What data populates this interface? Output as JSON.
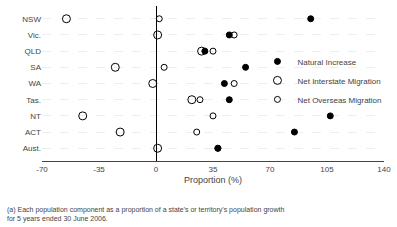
{
  "chart_data": {
    "type": "scatter",
    "categories": [
      "NSW",
      "Vic.",
      "QLD",
      "SA",
      "WA",
      "Tas.",
      "NT",
      "ACT",
      "Aust."
    ],
    "series": [
      {
        "name": "Natural Increase",
        "color": "#000000",
        "marker": "circle",
        "values": [
          95,
          45,
          30,
          55,
          42,
          45,
          107,
          85,
          38
        ]
      },
      {
        "name": "Net Interstate Migration",
        "color": "#000000",
        "marker": "circle-open",
        "values": [
          -55,
          1,
          28,
          -25,
          -2,
          22,
          -45,
          -22,
          1
        ]
      },
      {
        "name": "Net Overseas Migration",
        "color": "#000000",
        "marker": "circle-open",
        "values": [
          2,
          48,
          35,
          5,
          48,
          27,
          35,
          25,
          38
        ]
      }
    ],
    "xlim": [
      -70,
      140
    ],
    "xticks": [
      -70,
      -35,
      0,
      35,
      70,
      105,
      140
    ],
    "xlabel": "Proportion (%)",
    "annotations": [
      "(a) Each population component as a proportion of a state's or territory's population growth\nfor 5 years ended 30 June 2006."
    ],
    "grid": "y",
    "legend": "right"
  }
}
